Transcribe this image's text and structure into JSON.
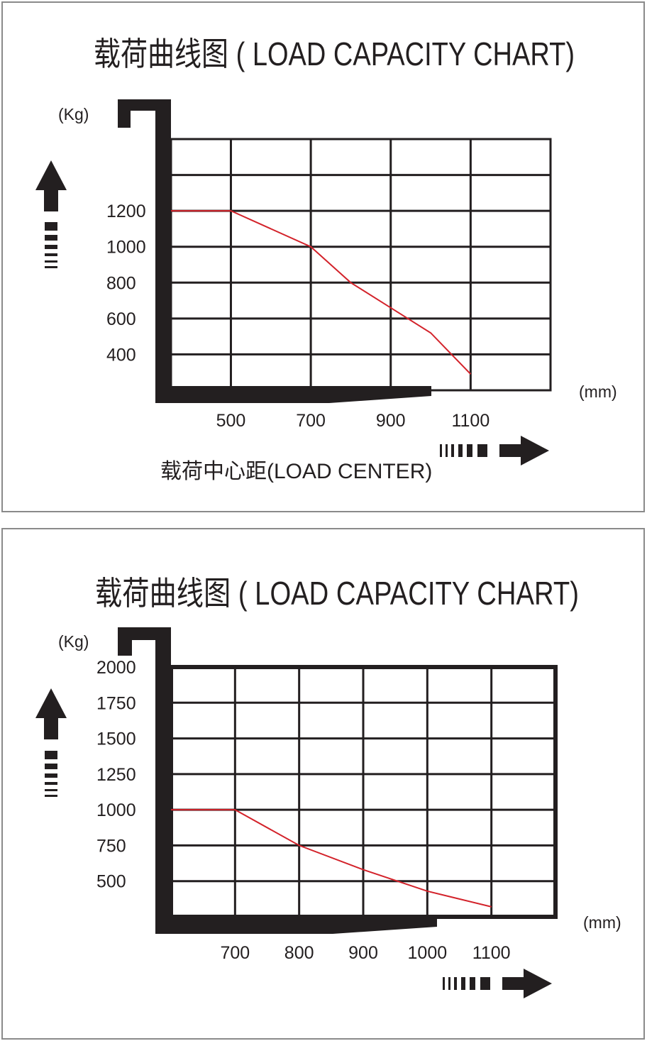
{
  "chart_data": [
    {
      "type": "line",
      "title": "载荷曲线图 ( LOAD CAPACITY CHART)",
      "ylabel": "(Kg)",
      "xunit": "(mm)",
      "xlabel": "载荷中心距(LOAD CENTER)",
      "x_ticks": [
        500,
        700,
        900,
        1100
      ],
      "y_ticks": [
        1200,
        1000,
        800,
        600,
        400
      ],
      "x_range": [
        350,
        1300
      ],
      "y_range": [
        200,
        1600
      ],
      "grid": true,
      "colors": {
        "curve": "#d3222a",
        "frame": "#231f20"
      },
      "series": [
        {
          "x": [
            350,
            500,
            700,
            800,
            900,
            1000,
            1100
          ],
          "y": [
            1200,
            1200,
            1000,
            800,
            660,
            520,
            290
          ]
        }
      ]
    },
    {
      "type": "line",
      "title": "载荷曲线图 ( LOAD CAPACITY CHART)",
      "ylabel": "(Kg)",
      "xunit": "(mm)",
      "xlabel": "",
      "x_ticks": [
        700,
        800,
        900,
        1000,
        1100
      ],
      "y_ticks": [
        2000,
        1750,
        1500,
        1250,
        1000,
        750,
        500
      ],
      "x_range": [
        600,
        1200
      ],
      "y_range": [
        250,
        2000
      ],
      "grid": true,
      "colors": {
        "curve": "#d3222a",
        "frame": "#231f20"
      },
      "series": [
        {
          "x": [
            600,
            700,
            800,
            900,
            1000,
            1100
          ],
          "y": [
            1000,
            1000,
            750,
            580,
            430,
            320
          ]
        }
      ]
    }
  ]
}
